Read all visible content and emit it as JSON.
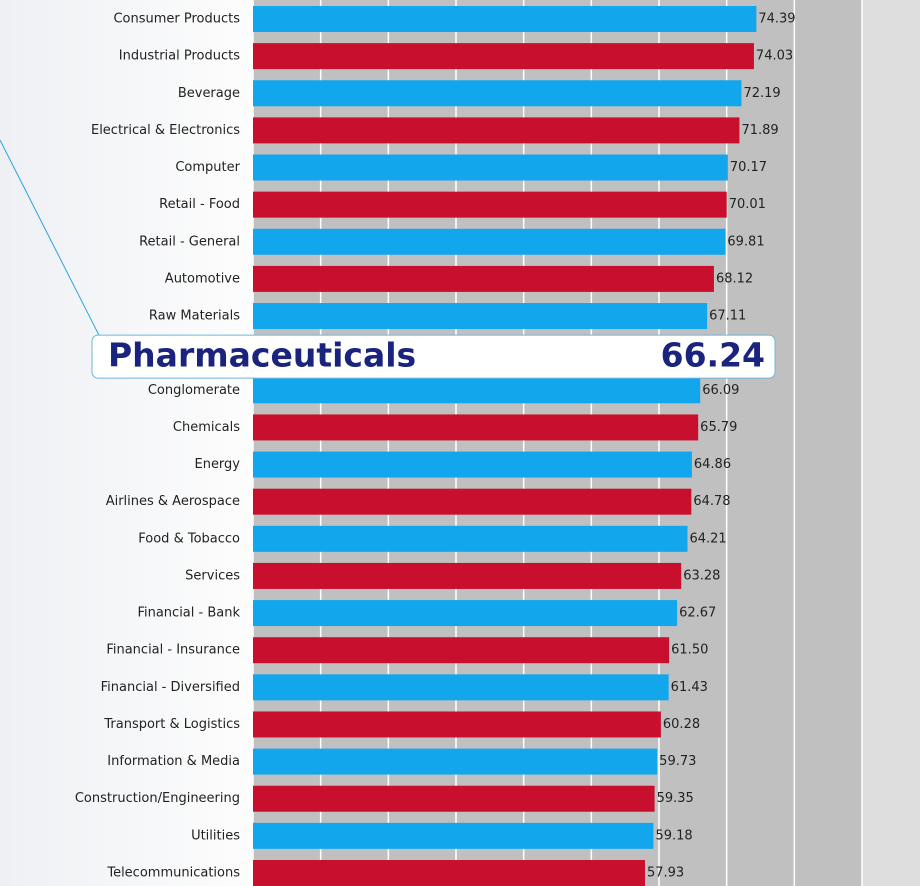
{
  "chart_data": {
    "type": "bar",
    "orientation": "horizontal",
    "categories": [
      "Consumer Products",
      "Industrial Products",
      "Beverage",
      "Electrical & Electronics",
      "Computer",
      "Retail - Food",
      "Retail - General",
      "Automotive",
      "Raw Materials",
      "Pharmaceuticals",
      "Conglomerate",
      "Chemicals",
      "Energy",
      "Airlines & Aerospace",
      "Food & Tobacco",
      "Services",
      "Financial - Bank",
      "Financial - Insurance",
      "Financial - Diversified",
      "Transport & Logistics",
      "Information & Media",
      "Construction/Engineering",
      "Utilities",
      "Telecommunications"
    ],
    "values": [
      74.39,
      74.03,
      72.19,
      71.89,
      70.17,
      70.01,
      69.81,
      68.12,
      67.11,
      66.24,
      66.09,
      65.79,
      64.86,
      64.78,
      64.21,
      63.28,
      62.67,
      61.5,
      61.43,
      60.28,
      59.73,
      59.35,
      59.18,
      57.93
    ],
    "value_labels": [
      "74.39",
      "74.03",
      "72.19",
      "71.89",
      "70.17",
      "70.01",
      "69.81",
      "68.12",
      "67.11",
      "66.24",
      "66.09",
      "65.79",
      "64.86",
      "64.78",
      "64.21",
      "63.28",
      "62.67",
      "61.50",
      "61.43",
      "60.28",
      "59.73",
      "59.35",
      "59.18",
      "57.93"
    ],
    "colors": [
      "#12a6ec",
      "#c8102e",
      "#12a6ec",
      "#c8102e",
      "#12a6ec",
      "#c8102e",
      "#12a6ec",
      "#c8102e",
      "#12a6ec",
      "#c8102e",
      "#12a6ec",
      "#c8102e",
      "#12a6ec",
      "#c8102e",
      "#12a6ec",
      "#c8102e",
      "#12a6ec",
      "#c8102e",
      "#12a6ec",
      "#c8102e",
      "#12a6ec",
      "#c8102e",
      "#12a6ec",
      "#c8102e"
    ],
    "xlim": [
      0,
      90
    ],
    "xticks": [
      0,
      10,
      20,
      30,
      40,
      50,
      60,
      70,
      80,
      90
    ],
    "grid": true,
    "highlight": 9
  }
}
